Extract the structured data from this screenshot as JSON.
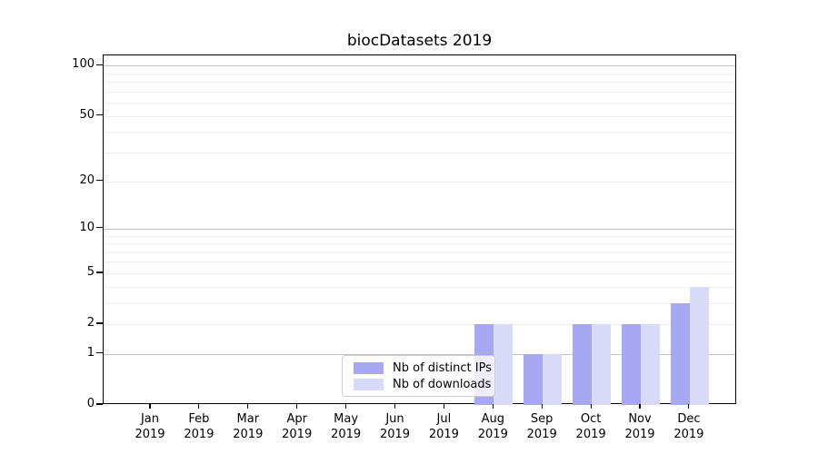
{
  "chart_data": {
    "type": "bar",
    "title": "biocDatasets 2019",
    "categories": [
      "Jan",
      "Feb",
      "Mar",
      "Apr",
      "May",
      "Jun",
      "Jul",
      "Aug",
      "Sep",
      "Oct",
      "Nov",
      "Dec"
    ],
    "year": "2019",
    "series": [
      {
        "name": "Nb of distinct IPs",
        "color": "#a8a8f2",
        "values": [
          0,
          0,
          0,
          0,
          0,
          0,
          0,
          2,
          1,
          2,
          2,
          3
        ]
      },
      {
        "name": "Nb of downloads",
        "color": "#d9d9f8",
        "values": [
          0,
          0,
          0,
          0,
          0,
          0,
          0,
          2,
          1,
          2,
          2,
          4
        ]
      }
    ],
    "y_scale": "log1p",
    "y_ticks": [
      0,
      1,
      2,
      5,
      10,
      20,
      50,
      100
    ],
    "ylim": [
      0,
      115
    ],
    "grid": {
      "major_values": [
        1,
        10,
        100
      ],
      "minor_values": [
        2,
        3,
        4,
        5,
        6,
        7,
        8,
        9,
        20,
        30,
        40,
        50,
        60,
        70,
        80,
        90
      ],
      "major_color": "#c3c3c3",
      "minor_color": "#ececec"
    },
    "legend": {
      "position": "lower center",
      "entries": [
        "Nb of distinct IPs",
        "Nb of downloads"
      ]
    },
    "xlabel": "",
    "ylabel": ""
  }
}
